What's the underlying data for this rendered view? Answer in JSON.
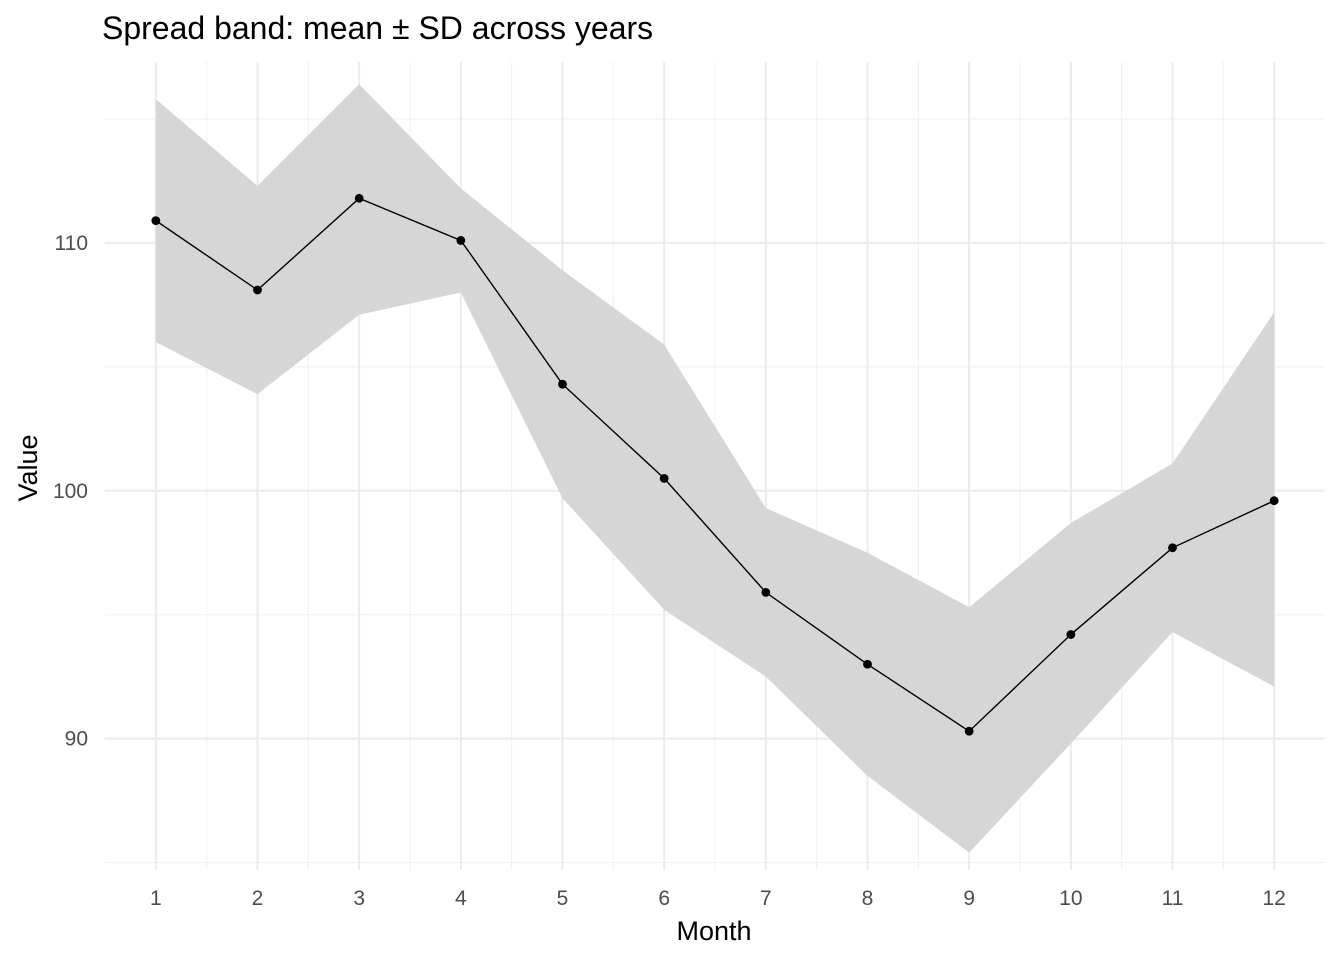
{
  "chart_data": {
    "type": "line",
    "title": "Spread band: mean ± SD across years",
    "xlabel": "Month",
    "ylabel": "Value",
    "x": [
      1,
      2,
      3,
      4,
      5,
      6,
      7,
      8,
      9,
      10,
      11,
      12
    ],
    "x_tick_labels": [
      "1",
      "2",
      "3",
      "4",
      "5",
      "6",
      "7",
      "8",
      "9",
      "10",
      "11",
      "12"
    ],
    "y_ticks": [
      90,
      100,
      110
    ],
    "y_tick_labels": [
      "90",
      "100",
      "110"
    ],
    "xlim": [
      0.5,
      12.5
    ],
    "ylim": [
      84.7,
      117.3
    ],
    "grid": true,
    "series": [
      {
        "values": [
          110.9,
          108.1,
          111.8,
          110.1,
          104.3,
          100.5,
          95.9,
          93.0,
          90.3,
          94.2,
          97.7,
          99.6
        ],
        "line_color": "#000000",
        "marker": "circle"
      }
    ],
    "band": {
      "upper": [
        115.8,
        112.3,
        116.4,
        112.2,
        108.9,
        105.9,
        99.3,
        97.5,
        95.3,
        98.7,
        101.1,
        107.2
      ],
      "lower": [
        106.0,
        103.9,
        107.1,
        108.0,
        99.7,
        95.2,
        92.5,
        88.5,
        85.4,
        89.8,
        94.3,
        92.1
      ],
      "fill_color": "#d6d6d6"
    }
  }
}
